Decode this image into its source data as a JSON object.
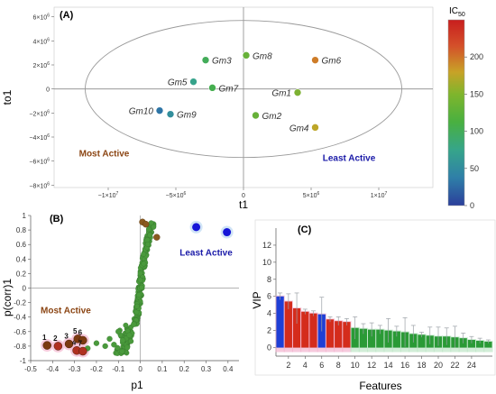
{
  "panel_labels": [
    "(A)",
    "(B)",
    "(C)"
  ],
  "colorbar": {
    "title_base": "IC",
    "title_sub": "50",
    "ticks": [
      "0",
      "50",
      "100",
      "150",
      "200"
    ],
    "min": 0,
    "max": 250
  },
  "chart_data": [
    {
      "type": "scatter",
      "panel": "(A)",
      "xlabel": "t1",
      "ylabel": "to1",
      "xlim": [
        -14000000,
        14000000
      ],
      "ylim": [
        -8200000,
        6800000
      ],
      "x_ticks": [
        {
          "v": -10000000,
          "base": "−1×10",
          "exp": "7"
        },
        {
          "v": -5000000,
          "base": "−5×10",
          "exp": "6"
        },
        {
          "v": 0,
          "base": "0",
          "exp": ""
        },
        {
          "v": 5000000,
          "base": "5×10",
          "exp": "6"
        },
        {
          "v": 10000000,
          "base": "1×10",
          "exp": "7"
        }
      ],
      "y_ticks": [
        {
          "v": 6000000,
          "base": "6×10",
          "exp": "6"
        },
        {
          "v": 4000000,
          "base": "4×10",
          "exp": "6"
        },
        {
          "v": 2000000,
          "base": "2×10",
          "exp": "6"
        },
        {
          "v": 0,
          "base": "0",
          "exp": ""
        },
        {
          "v": -2000000,
          "base": "−2×10",
          "exp": "6"
        },
        {
          "v": -4000000,
          "base": "−4×10",
          "exp": "6"
        },
        {
          "v": -6000000,
          "base": "−6×10",
          "exp": "6"
        },
        {
          "v": -8000000,
          "base": "−8×10",
          "exp": "6"
        }
      ],
      "ellipse": {
        "cx": 0,
        "cy": 0,
        "rx": 11700000,
        "ry": 5700000
      },
      "points": [
        {
          "label": "Gm3",
          "x": -2800000,
          "y": 2400000,
          "ic50": 95,
          "label_side": "right"
        },
        {
          "label": "Gm8",
          "x": 200000,
          "y": 2800000,
          "ic50": 120,
          "label_side": "right"
        },
        {
          "label": "Gm6",
          "x": 5300000,
          "y": 2400000,
          "ic50": 195,
          "label_side": "right"
        },
        {
          "label": "Gm5",
          "x": -3700000,
          "y": 600000,
          "ic50": 70,
          "label_side": "left"
        },
        {
          "label": "Gm7",
          "x": -2300000,
          "y": 100000,
          "ic50": 100,
          "label_side": "right"
        },
        {
          "label": "Gm1",
          "x": 4000000,
          "y": -300000,
          "ic50": 130,
          "label_side": "left"
        },
        {
          "label": "Gm10",
          "x": -6200000,
          "y": -1800000,
          "ic50": 30,
          "label_side": "left"
        },
        {
          "label": "Gm9",
          "x": -5400000,
          "y": -2100000,
          "ic50": 50,
          "label_side": "right"
        },
        {
          "label": "Gm2",
          "x": 900000,
          "y": -2200000,
          "ic50": 120,
          "label_side": "right"
        },
        {
          "label": "Gm4",
          "x": 5300000,
          "y": -3200000,
          "ic50": 170,
          "label_side": "left"
        }
      ],
      "annotations": [
        {
          "text": "Most Active",
          "x": -10300000,
          "y": -5600000,
          "color": "#8b4513"
        },
        {
          "text": "Least Active",
          "x": 7800000,
          "y": -6000000,
          "color": "#1a1aa8"
        }
      ]
    },
    {
      "type": "scatter",
      "panel": "(B)",
      "xlabel": "p1",
      "ylabel": "p(corr)1",
      "xlim": [
        -0.5,
        0.45
      ],
      "ylim": [
        -1,
        1
      ],
      "x_ticks": [
        "-0.5",
        "-0.4",
        "-0.3",
        "-0.2",
        "-0.1",
        "0",
        "0.1",
        "0.2",
        "0.3",
        "0.4"
      ],
      "y_ticks": [
        "1",
        "0.8",
        "0.6",
        "0.4",
        "0.2",
        "0",
        "-0.2",
        "-0.4",
        "-0.6",
        "-0.8",
        "-1"
      ],
      "highlighted_points": [
        {
          "label": "1",
          "x": -0.425,
          "y": -0.79,
          "color": "#7b3a10"
        },
        {
          "label": "2",
          "x": -0.375,
          "y": -0.8,
          "color": "#b03020"
        },
        {
          "label": "3",
          "x": -0.325,
          "y": -0.77,
          "color": "#7b3a10"
        },
        {
          "label": "4",
          "x": -0.29,
          "y": -0.86,
          "color": "#b03020"
        },
        {
          "label": "5",
          "x": -0.285,
          "y": -0.7,
          "color": "#7b3a10"
        },
        {
          "label": "6",
          "x": -0.262,
          "y": -0.72,
          "color": "#7b3a10"
        },
        {
          "label": "7",
          "x": -0.262,
          "y": -0.87,
          "color": "#b03020"
        }
      ],
      "blue_points": [
        {
          "x": 0.255,
          "y": 0.84
        },
        {
          "x": 0.395,
          "y": 0.77
        }
      ],
      "brown_points": [
        {
          "x": 0.075,
          "y": 0.7
        },
        {
          "x": 0.01,
          "y": 0.91
        },
        {
          "x": 0.025,
          "y": 0.88
        }
      ],
      "green_points_note": "dense S-shaped band of green points near p1 = 0 rising from -0.9 to 0.9, plus sparse points trailing toward the lower-left cluster",
      "annotations": [
        {
          "text": "Least Active",
          "x": 0.3,
          "y": 0.45,
          "color": "#1a1aa8"
        },
        {
          "text": "Most Active",
          "x": -0.34,
          "y": -0.35,
          "color": "#8b4513"
        }
      ]
    },
    {
      "type": "bar",
      "panel": "(C)",
      "xlabel": "Features",
      "ylabel": "VIP",
      "ylim": [
        -1,
        14
      ],
      "y_ticks": [
        "12",
        "10",
        "8",
        "6",
        "4",
        "2",
        "0"
      ],
      "categories": [
        "1",
        "2",
        "3",
        "4",
        "5",
        "6",
        "7",
        "8",
        "9",
        "10",
        "11",
        "12",
        "13",
        "14",
        "15",
        "16",
        "17",
        "18",
        "19",
        "20",
        "21",
        "22",
        "23",
        "24",
        "25",
        "26"
      ],
      "tick_labels": [
        "2",
        "4",
        "6",
        "8",
        "10",
        "12",
        "14",
        "16",
        "18",
        "20",
        "22",
        "24"
      ],
      "values": [
        6.0,
        5.4,
        4.6,
        4.2,
        4.0,
        3.9,
        3.3,
        3.1,
        3.0,
        2.3,
        2.2,
        2.1,
        2.1,
        2.0,
        1.9,
        1.8,
        1.6,
        1.5,
        1.4,
        1.3,
        1.3,
        1.2,
        1.1,
        0.9,
        0.8,
        0.7
      ],
      "errors": [
        0.4,
        0.9,
        1.8,
        0.3,
        0.3,
        2.0,
        0.3,
        0.5,
        0.4,
        1.3,
        0.6,
        0.8,
        0.5,
        1.4,
        0.6,
        1.7,
        1.0,
        0.3,
        1.0,
        1.1,
        1.0,
        1.3,
        0.6,
        0.4,
        0.3,
        0.2
      ],
      "bar_colors": [
        "#1f3fd6",
        "#d42c1c",
        "#d42c1c",
        "#d42c1c",
        "#d42c1c",
        "#1f3fd6",
        "#d42c1c",
        "#d42c1c",
        "#d42c1c",
        "#2a9a36",
        "#2a9a36",
        "#2a9a36",
        "#2a9a36",
        "#2a9a36",
        "#2a9a36",
        "#2a9a36",
        "#2a9a36",
        "#2a9a36",
        "#2a9a36",
        "#2a9a36",
        "#2a9a36",
        "#2a9a36",
        "#2a9a36",
        "#2a9a36",
        "#2a9a36",
        "#2a9a36"
      ]
    }
  ],
  "colors": {
    "scale": [
      "#2b3f9b",
      "#2f7fa8",
      "#36a58a",
      "#49b040",
      "#9bb22c",
      "#c8a227",
      "#d4502a",
      "#c81e1e"
    ],
    "green_point": "#4a9a3c",
    "blue_point": "#1616d8",
    "brown_point": "#8a5a20"
  }
}
